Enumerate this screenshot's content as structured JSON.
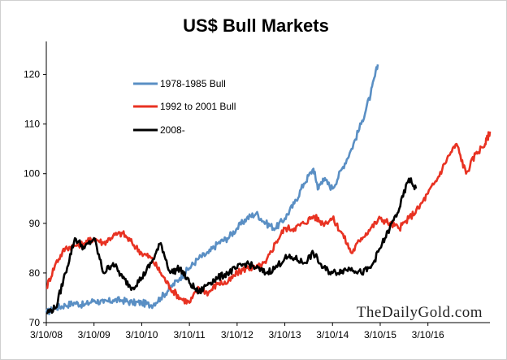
{
  "chart_data": {
    "type": "line",
    "title": "US$ Bull Markets",
    "xlabel": "",
    "ylabel": "",
    "ylim": [
      70,
      125
    ],
    "yticks": [
      70,
      80,
      90,
      100,
      110,
      120
    ],
    "x_tick_labels": [
      "3/10/08",
      "3/10/09",
      "3/10/10",
      "3/10/11",
      "3/10/12",
      "3/10/13",
      "3/10/14",
      "3/10/15",
      "3/10/16"
    ],
    "xlim_years": [
      0,
      9.3
    ],
    "grid": false,
    "legend_position": "top-left",
    "watermark": "TheDailyGold.com",
    "series": [
      {
        "name": "1978-1985 Bull",
        "color": "#5a8fc4",
        "points": [
          [
            0,
            72
          ],
          [
            0.2,
            73
          ],
          [
            0.4,
            73.5
          ],
          [
            0.6,
            74
          ],
          [
            0.8,
            73.5
          ],
          [
            1.0,
            74.5
          ],
          [
            1.2,
            74
          ],
          [
            1.4,
            74.5
          ],
          [
            1.6,
            74.5
          ],
          [
            1.8,
            74
          ],
          [
            2.0,
            74
          ],
          [
            2.2,
            73.5
          ],
          [
            2.4,
            75
          ],
          [
            2.6,
            77
          ],
          [
            2.8,
            79
          ],
          [
            3.0,
            81
          ],
          [
            3.2,
            83
          ],
          [
            3.4,
            84
          ],
          [
            3.6,
            86
          ],
          [
            3.8,
            87
          ],
          [
            4.0,
            89
          ],
          [
            4.2,
            91
          ],
          [
            4.4,
            92
          ],
          [
            4.6,
            90
          ],
          [
            4.8,
            89
          ],
          [
            5.0,
            91
          ],
          [
            5.2,
            94
          ],
          [
            5.4,
            98
          ],
          [
            5.6,
            101
          ],
          [
            5.7,
            97
          ],
          [
            5.8,
            99
          ],
          [
            6.0,
            97
          ],
          [
            6.2,
            101
          ],
          [
            6.4,
            105
          ],
          [
            6.6,
            110
          ],
          [
            6.8,
            116
          ],
          [
            6.95,
            122
          ]
        ]
      },
      {
        "name": "1992 to 2001 Bull",
        "color": "#e83222",
        "points": [
          [
            0,
            77
          ],
          [
            0.2,
            82
          ],
          [
            0.4,
            85
          ],
          [
            0.6,
            85.5
          ],
          [
            0.8,
            86
          ],
          [
            1.0,
            87
          ],
          [
            1.2,
            86
          ],
          [
            1.4,
            87.5
          ],
          [
            1.6,
            88
          ],
          [
            1.8,
            86
          ],
          [
            2.0,
            84
          ],
          [
            2.2,
            83
          ],
          [
            2.4,
            80
          ],
          [
            2.6,
            77
          ],
          [
            2.8,
            75
          ],
          [
            3.0,
            74
          ],
          [
            3.2,
            77
          ],
          [
            3.4,
            76
          ],
          [
            3.6,
            78
          ],
          [
            3.8,
            78
          ],
          [
            4.0,
            80
          ],
          [
            4.2,
            81
          ],
          [
            4.4,
            81
          ],
          [
            4.6,
            82
          ],
          [
            4.8,
            86
          ],
          [
            5.0,
            89
          ],
          [
            5.2,
            89
          ],
          [
            5.4,
            90
          ],
          [
            5.6,
            91.5
          ],
          [
            5.8,
            90
          ],
          [
            6.0,
            91
          ],
          [
            6.2,
            88
          ],
          [
            6.4,
            84
          ],
          [
            6.6,
            87
          ],
          [
            6.8,
            89
          ],
          [
            7.0,
            91
          ],
          [
            7.2,
            90
          ],
          [
            7.4,
            89
          ],
          [
            7.6,
            91
          ],
          [
            7.8,
            93
          ],
          [
            8.0,
            96
          ],
          [
            8.2,
            99
          ],
          [
            8.4,
            103
          ],
          [
            8.6,
            106
          ],
          [
            8.8,
            100
          ],
          [
            9.0,
            104
          ],
          [
            9.2,
            106
          ],
          [
            9.3,
            108.5
          ]
        ]
      },
      {
        "name": "2008-",
        "color": "#000000",
        "points": [
          [
            0,
            72
          ],
          [
            0.2,
            73
          ],
          [
            0.4,
            80
          ],
          [
            0.6,
            87
          ],
          [
            0.8,
            85
          ],
          [
            1.0,
            87
          ],
          [
            1.2,
            80
          ],
          [
            1.4,
            82
          ],
          [
            1.6,
            79
          ],
          [
            1.8,
            77
          ],
          [
            2.0,
            79
          ],
          [
            2.2,
            82
          ],
          [
            2.4,
            86
          ],
          [
            2.6,
            80
          ],
          [
            2.8,
            81
          ],
          [
            3.0,
            78
          ],
          [
            3.2,
            76
          ],
          [
            3.4,
            78
          ],
          [
            3.6,
            79
          ],
          [
            3.8,
            80
          ],
          [
            4.0,
            81
          ],
          [
            4.2,
            82
          ],
          [
            4.4,
            81
          ],
          [
            4.6,
            80
          ],
          [
            4.8,
            81
          ],
          [
            5.0,
            83
          ],
          [
            5.2,
            83
          ],
          [
            5.4,
            82
          ],
          [
            5.6,
            84
          ],
          [
            5.8,
            81
          ],
          [
            6.0,
            80
          ],
          [
            6.2,
            80.5
          ],
          [
            6.4,
            81
          ],
          [
            6.6,
            80
          ],
          [
            6.8,
            81
          ],
          [
            7.0,
            85
          ],
          [
            7.2,
            89
          ],
          [
            7.4,
            93
          ],
          [
            7.6,
            99
          ],
          [
            7.75,
            97
          ]
        ]
      }
    ]
  }
}
